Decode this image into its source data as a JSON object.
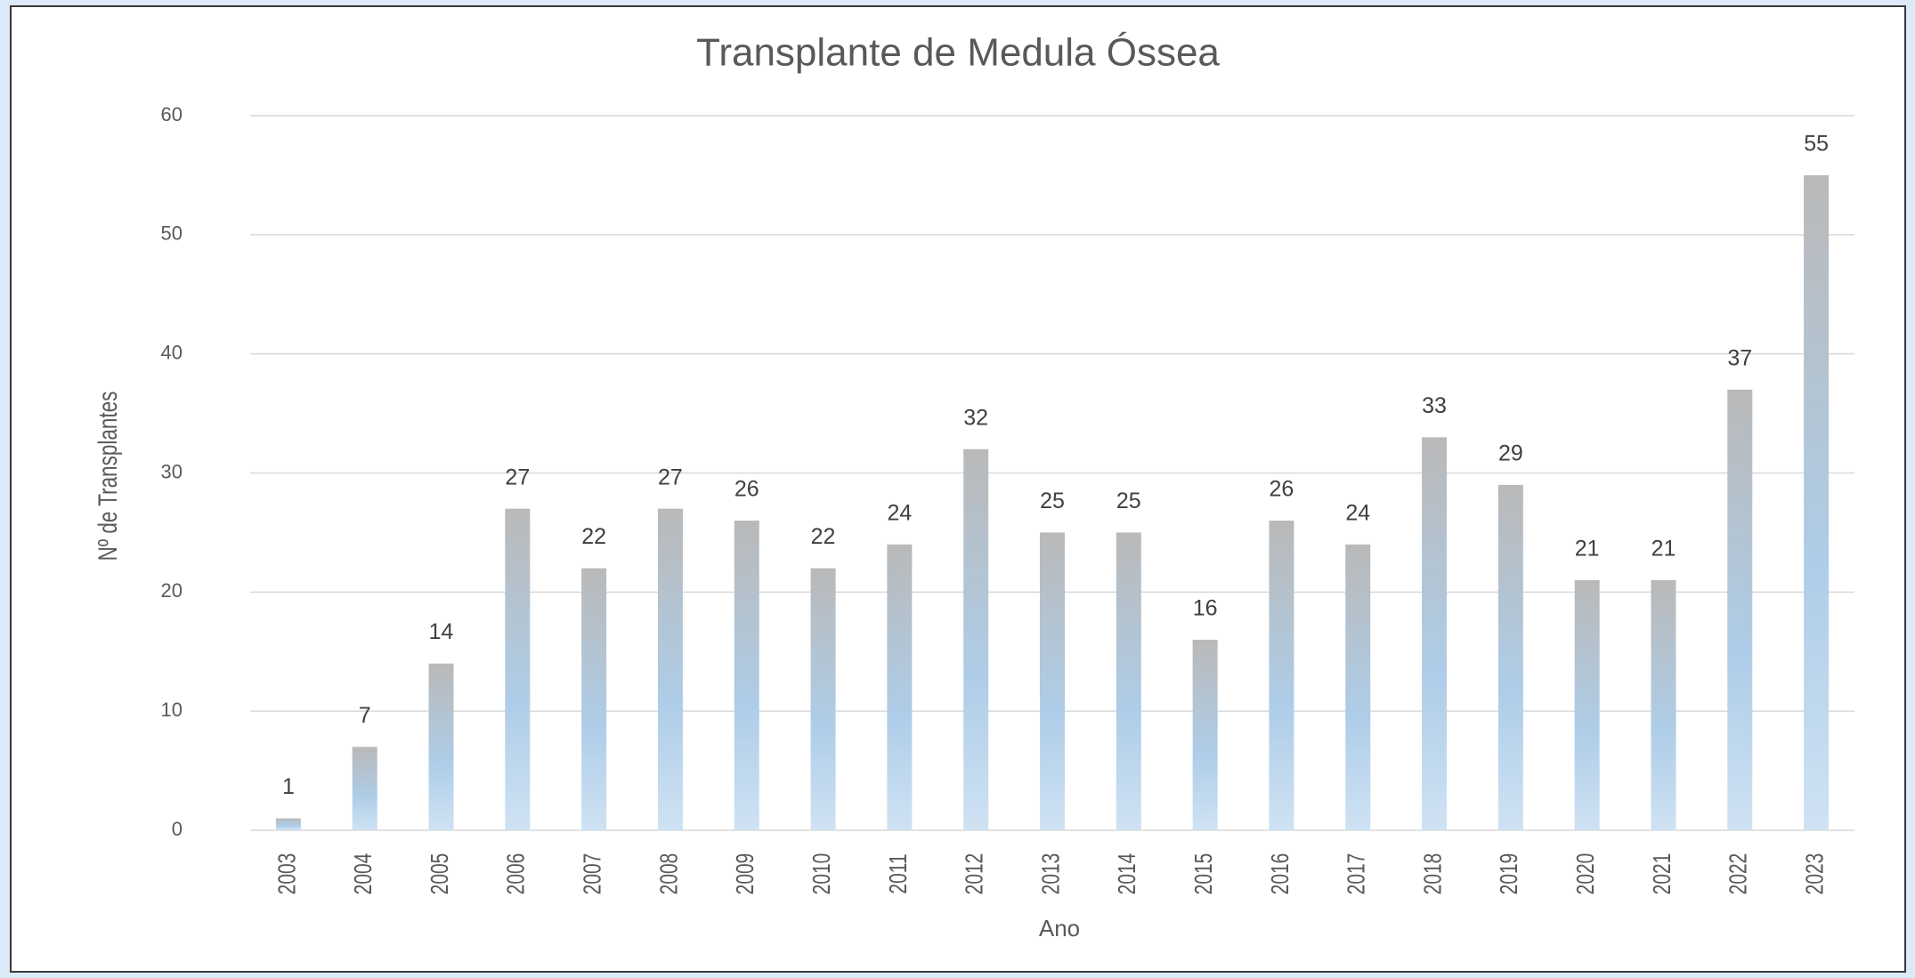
{
  "chart_data": {
    "type": "bar",
    "title": "Transplante de Medula Óssea",
    "x_label": "Ano",
    "y_label": "Nº de Transplantes",
    "categories": [
      "2003",
      "2004",
      "2005",
      "2006",
      "2007",
      "2008",
      "2009",
      "2010",
      "2011",
      "2012",
      "2013",
      "2014",
      "2015",
      "2016",
      "2017",
      "2018",
      "2019",
      "2020",
      "2021",
      "2022",
      "2023"
    ],
    "values": [
      1,
      7,
      14,
      27,
      22,
      27,
      26,
      22,
      24,
      32,
      25,
      25,
      16,
      26,
      24,
      33,
      29,
      21,
      21,
      37,
      55
    ],
    "color": "#b9b9b9",
    "ylim": [
      0,
      60
    ],
    "yticks": [
      0,
      10,
      20,
      30,
      40,
      50,
      60
    ],
    "grid": true
  }
}
